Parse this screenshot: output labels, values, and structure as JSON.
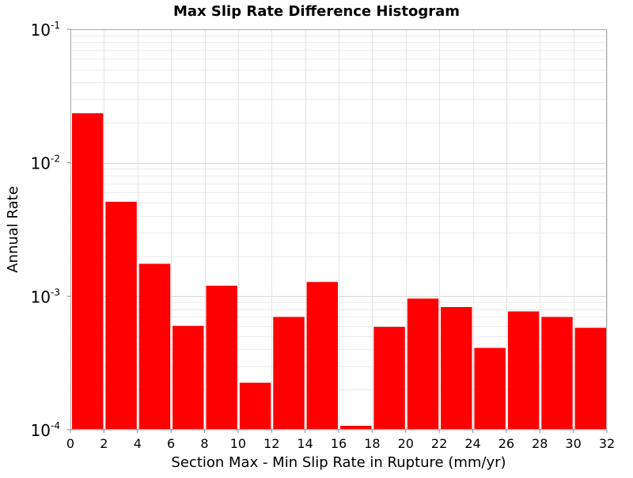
{
  "chart_data": {
    "type": "bar",
    "title": "Max Slip Rate Difference Histogram",
    "xlabel": "Section Max - Min Slip Rate in Rupture (mm/yr)",
    "ylabel": "Annual Rate",
    "y_scale": "log",
    "xlim": [
      0,
      32
    ],
    "ylim": [
      0.0001,
      0.1
    ],
    "x_ticks": [
      "0",
      "2",
      "4",
      "6",
      "8",
      "10",
      "12",
      "14",
      "16",
      "18",
      "20",
      "22",
      "24",
      "26",
      "28",
      "30",
      "32"
    ],
    "y_ticks": [
      {
        "base": "10",
        "exp": "-4"
      },
      {
        "base": "10",
        "exp": "-3"
      },
      {
        "base": "10",
        "exp": "-2"
      },
      {
        "base": "10",
        "exp": "-1"
      }
    ],
    "grid": true,
    "bar_color": "#ff0000",
    "bins": [
      {
        "x0": 0,
        "x1": 2,
        "value": 0.0235
      },
      {
        "x0": 2,
        "x1": 4,
        "value": 0.0051
      },
      {
        "x0": 4,
        "x1": 6,
        "value": 0.00175
      },
      {
        "x0": 6,
        "x1": 8,
        "value": 0.0006
      },
      {
        "x0": 8,
        "x1": 10,
        "value": 0.0012
      },
      {
        "x0": 10,
        "x1": 12,
        "value": 0.000225
      },
      {
        "x0": 12,
        "x1": 14,
        "value": 0.0007
      },
      {
        "x0": 14,
        "x1": 16,
        "value": 0.00128
      },
      {
        "x0": 16,
        "x1": 18,
        "value": 0.000107
      },
      {
        "x0": 18,
        "x1": 20,
        "value": 0.00059
      },
      {
        "x0": 20,
        "x1": 22,
        "value": 0.00096
      },
      {
        "x0": 22,
        "x1": 24,
        "value": 0.00083
      },
      {
        "x0": 24,
        "x1": 26,
        "value": 0.00041
      },
      {
        "x0": 26,
        "x1": 28,
        "value": 0.00077
      },
      {
        "x0": 28,
        "x1": 30,
        "value": 0.0007
      },
      {
        "x0": 30,
        "x1": 32,
        "value": 0.00058
      }
    ]
  }
}
